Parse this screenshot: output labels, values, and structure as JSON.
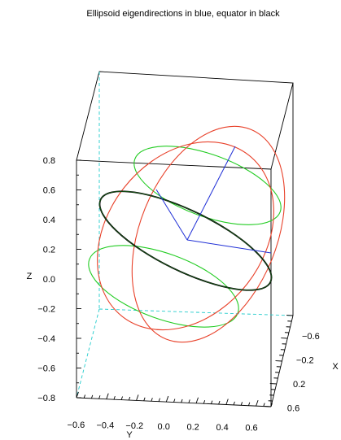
{
  "chart_data": {
    "type": "3d-line",
    "title": "Ellipsoid eigendirections in blue, equator in black",
    "xlabel": "X",
    "ylabel": "Y",
    "zlabel": "Z",
    "z_ticks": [
      "0.8",
      "0.6",
      "0.4",
      "0.2",
      "0.0",
      "−0.2",
      "−0.4",
      "−0.6",
      "−0.8"
    ],
    "y_ticks": [
      "−0.6",
      "−0.4",
      "−0.2",
      "0.0",
      "0.2",
      "0.4",
      "0.6"
    ],
    "x_ticks": [
      "−0.6",
      "−0.2",
      "0.2",
      "0.6"
    ],
    "colors": {
      "eigendirections": "#1f2fd6",
      "equator": "#000000",
      "green_circles": "#22cc22",
      "red_ellipses": "#e8412a",
      "axis_dash": "#22cccc"
    }
  }
}
